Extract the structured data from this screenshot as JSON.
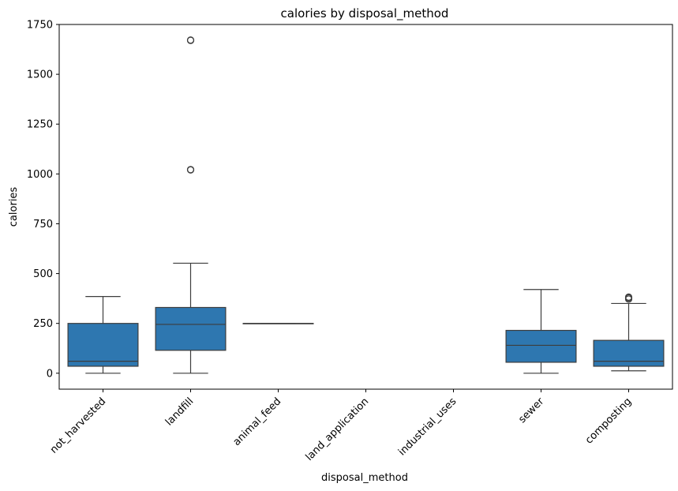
{
  "chart_data": {
    "type": "boxplot",
    "title": "calories by disposal_method",
    "xlabel": "disposal_method",
    "ylabel": "calories",
    "ylim": [
      -80,
      1750
    ],
    "yticks": [
      0,
      250,
      500,
      750,
      1000,
      1250,
      1500,
      1750
    ],
    "ytick_labels": [
      "0",
      "250",
      "500",
      "750",
      "1000",
      "1250",
      "1500",
      "1750"
    ],
    "categories": [
      "not_harvested",
      "landfill",
      "animal_feed",
      "land_application",
      "industrial_uses",
      "sewer",
      "composting"
    ],
    "box_color": "#2e77b0",
    "line_color": "#3d3d3d",
    "boxes": [
      {
        "category": "not_harvested",
        "whisker_low": 0,
        "q1": 35,
        "median": 60,
        "q3": 250,
        "whisker_high": 385,
        "outliers": []
      },
      {
        "category": "landfill",
        "whisker_low": 0,
        "q1": 115,
        "median": 245,
        "q3": 330,
        "whisker_high": 552,
        "outliers": [
          1020,
          1022,
          1670,
          1672
        ]
      },
      {
        "category": "animal_feed",
        "whisker_low": 250,
        "q1": 250,
        "median": 250,
        "q3": 250,
        "whisker_high": 250,
        "outliers": []
      },
      {
        "category": "land_application",
        "empty": true
      },
      {
        "category": "industrial_uses",
        "empty": true
      },
      {
        "category": "sewer",
        "whisker_low": 0,
        "q1": 55,
        "median": 140,
        "q3": 215,
        "whisker_high": 420,
        "outliers": []
      },
      {
        "category": "composting",
        "whisker_low": 12,
        "q1": 35,
        "median": 60,
        "q3": 165,
        "whisker_high": 350,
        "outliers": [
          372,
          378,
          382
        ]
      }
    ]
  }
}
